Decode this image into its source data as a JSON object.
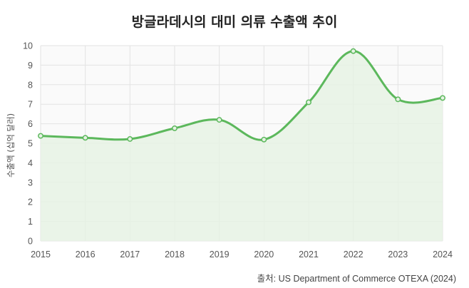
{
  "chart_data": {
    "type": "area",
    "title": "방글라데시의 대미 의류 수출액 추이",
    "ylabel": "수출액 (십억 달러)",
    "xlabel": "",
    "x": [
      "2015",
      "2016",
      "2017",
      "2018",
      "2019",
      "2020",
      "2021",
      "2022",
      "2023",
      "2024"
    ],
    "series": [
      {
        "values": [
          5.38,
          5.28,
          5.22,
          5.77,
          6.2,
          5.19,
          7.1,
          9.72,
          7.25,
          7.32
        ]
      }
    ],
    "ylim": [
      0,
      10
    ],
    "yticks": [
      0,
      1,
      2,
      3,
      4,
      5,
      6,
      7,
      8,
      9,
      10
    ],
    "grid": true,
    "colors": {
      "line": "#5cb85c",
      "fill": "#e6f2e4",
      "grid": "#e3e3e3",
      "plot_bg": "#fafafa"
    }
  },
  "source": "출처: US Department of Commerce OTEXA (2024)"
}
